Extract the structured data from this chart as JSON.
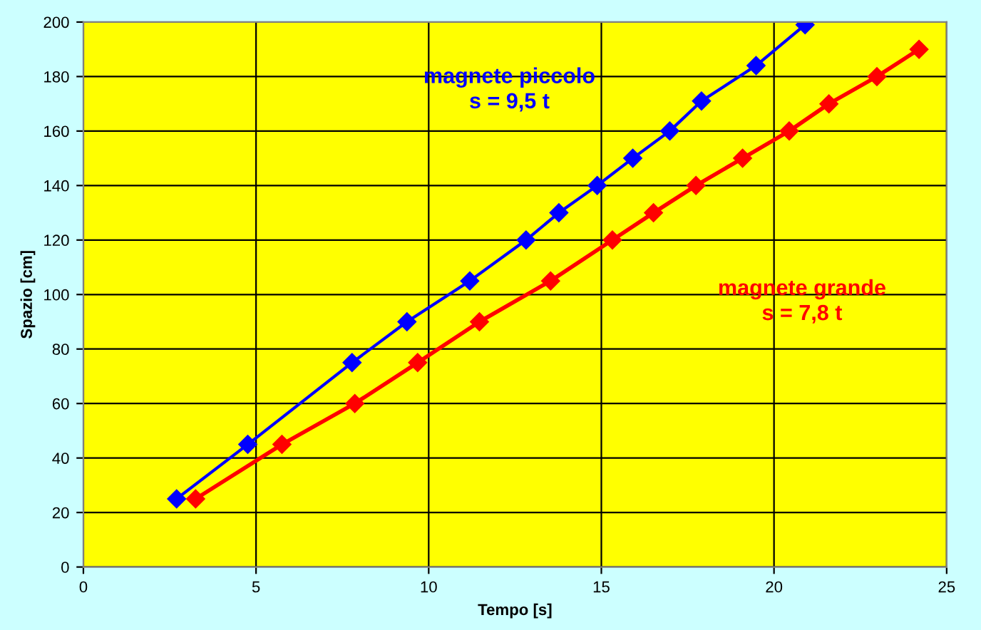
{
  "chart_data": {
    "type": "line",
    "xlabel": "Tempo [s]",
    "ylabel": "Spazio [cm]",
    "xlim": [
      0,
      25
    ],
    "xticks": [
      0,
      5,
      10,
      15,
      20,
      25
    ],
    "ylim": [
      0,
      200
    ],
    "yticks": [
      0,
      20,
      40,
      60,
      80,
      100,
      120,
      140,
      160,
      180,
      200
    ],
    "grid": true,
    "legend": false,
    "marker": "diamond",
    "line_style": "solid",
    "series": [
      {
        "name": "magnete piccolo\ns = 9,5 t",
        "color": "#0000ff",
        "x": [
          2.7,
          4.76,
          7.78,
          9.37,
          11.19,
          12.82,
          13.77,
          14.88,
          15.91,
          16.98,
          17.9,
          19.48,
          20.9
        ],
        "values": [
          25,
          45,
          75,
          90,
          105,
          120,
          130,
          140,
          150,
          160,
          171,
          184,
          199
        ]
      },
      {
        "name": "magnete grande\ns = 7,8 t",
        "color": "#ff0000",
        "x": [
          3.25,
          5.75,
          7.86,
          9.68,
          11.47,
          13.53,
          15.32,
          16.51,
          17.74,
          19.09,
          20.44,
          21.59,
          22.98,
          24.2
        ],
        "values": [
          25,
          45,
          60,
          75,
          90,
          105,
          120,
          130,
          140,
          150,
          160,
          170,
          180,
          190
        ]
      }
    ]
  }
}
